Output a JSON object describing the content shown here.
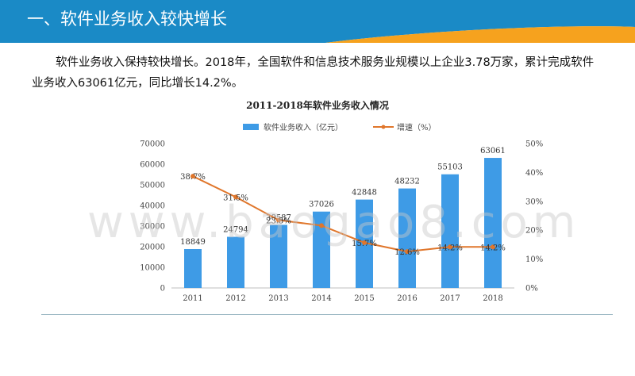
{
  "header": {
    "title": "一、软件业务收入较快增长"
  },
  "intro": {
    "text": "软件业务收入保持较快增长。2018年，全国软件和信息技术服务业规模以上企业3.78万家，累计完成软件业务收入63061亿元，同比增长14.2%。"
  },
  "watermark": {
    "text": "www.baogao8.com"
  },
  "colors": {
    "header_blue": "#1a8ac6",
    "header_orange": "#f6a21e",
    "bar": "#3e9be6",
    "line": "#e0762b"
  },
  "chart_data": {
    "type": "bar",
    "title": "2011-2018年软件业务收入情况",
    "categories": [
      "2011",
      "2012",
      "2013",
      "2014",
      "2015",
      "2016",
      "2017",
      "2018"
    ],
    "series": [
      {
        "name": "软件业务收入（亿元）",
        "type": "bar",
        "axis": "left",
        "values": [
          18849,
          24794,
          30587,
          37026,
          42848,
          48232,
          55103,
          63061
        ],
        "labels": [
          "18849",
          "24794",
          "30587",
          "37026",
          "42848",
          "48232",
          "55103",
          "63061"
        ]
      },
      {
        "name": "增速（%）",
        "type": "line",
        "axis": "right",
        "values": [
          38.7,
          31.5,
          23.5,
          21.6,
          15.7,
          12.6,
          14.2,
          14.2
        ],
        "labels": [
          "38.7%",
          "31.5%",
          "23.5%",
          "",
          "15.7%",
          "12.6%",
          "14.2%",
          "14.2%"
        ]
      }
    ],
    "y_left": {
      "ylim": [
        0,
        70000
      ],
      "ticks": [
        "0",
        "10000",
        "20000",
        "30000",
        "40000",
        "50000",
        "60000",
        "70000"
      ]
    },
    "y_right": {
      "ylim": [
        0,
        50
      ],
      "ticks": [
        "0%",
        "10%",
        "20%",
        "30%",
        "40%",
        "50%"
      ]
    },
    "legend_position": "top-center",
    "grid": false
  }
}
